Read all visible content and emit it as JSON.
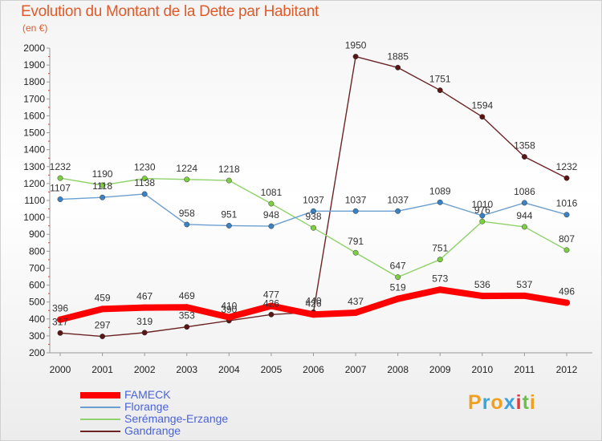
{
  "title": "Evolution du Montant de la Dette par Habitant",
  "subtitle": "(en €)",
  "logo": {
    "letters": [
      "P",
      "r",
      "o",
      "x",
      "i",
      "t",
      "i"
    ],
    "colors": [
      "#f0a020",
      "#39a6d8",
      "#f0a020",
      "#3aa0e0",
      "#e03a3a",
      "#6cc04a",
      "#f0a020"
    ]
  },
  "chart_data": {
    "type": "line",
    "title": "Evolution du Montant de la Dette par Habitant",
    "ylabel": "(en €)",
    "xlabel": "",
    "x": [
      "2000",
      "2001",
      "2002",
      "2003",
      "2004",
      "2005",
      "2006",
      "2007",
      "2008",
      "2009",
      "2010",
      "2011",
      "2012"
    ],
    "ylim": [
      200,
      2000
    ],
    "yticks": [
      200,
      300,
      400,
      500,
      600,
      700,
      800,
      900,
      1000,
      1100,
      1200,
      1300,
      1400,
      1500,
      1600,
      1700,
      1800,
      1900,
      2000
    ],
    "grid": false,
    "legend_position": "bottom-left",
    "series": [
      {
        "name": "Gandrange",
        "color": "#6b2323",
        "point_color": "#5a1515",
        "values": [
          317,
          297,
          319,
          353,
          390,
          426,
          440,
          1950,
          1885,
          1751,
          1594,
          1358,
          1232
        ],
        "labels": [
          "317",
          "297",
          "319",
          "353",
          "390",
          "426",
          "440",
          "1950",
          "1885",
          "1751",
          "1594",
          "1358",
          "1232"
        ]
      },
      {
        "name": "Serémange-Erzange",
        "color": "#8fd26a",
        "point_color": "#7cd040",
        "values": [
          1232,
          1190,
          1230,
          1224,
          1218,
          1081,
          938,
          791,
          647,
          751,
          976,
          944,
          807
        ],
        "labels": [
          "1232",
          "1190",
          "1230",
          "1224",
          "1218",
          "1081",
          "938",
          "791",
          "647",
          "751",
          "976",
          "944",
          "807"
        ]
      },
      {
        "name": "Florange",
        "color": "#6b9fd1",
        "point_color": "#3b82c4",
        "values": [
          1107,
          1118,
          1138,
          958,
          951,
          948,
          1037,
          1037,
          1037,
          1089,
          1010,
          1086,
          1016
        ],
        "labels": [
          "1107",
          "1118",
          "1138",
          "958",
          "951",
          "948",
          "1037",
          "1037",
          "1037",
          "1089",
          "1010",
          "1086",
          "1016"
        ]
      },
      {
        "name": "FAMECK",
        "color": "#ff0000",
        "point_color": "#ff0000",
        "values": [
          396,
          459,
          467,
          469,
          410,
          477,
          426,
          437,
          519,
          573,
          536,
          537,
          496
        ],
        "labels": [
          "396",
          "459",
          "467",
          "469",
          "410",
          "477",
          "426",
          "437",
          "519",
          "573",
          "536",
          "537",
          "496"
        ]
      }
    ],
    "legend": [
      "FAMECK",
      "Florange",
      "Serémange-Erzange",
      "Gandrange"
    ]
  }
}
